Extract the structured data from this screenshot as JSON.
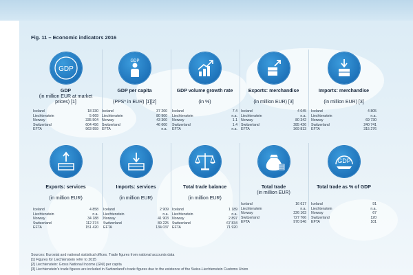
{
  "figure": {
    "title": "Fig. 11 – Economic indicators 2016"
  },
  "cards": [
    {
      "icon": "gdp-badge-icon",
      "title": "GDP",
      "subtitle": "(in million EUR at market prices) [1]",
      "rows": [
        {
          "country": "Iceland",
          "value": "18 330"
        },
        {
          "country": "Liechtenstein",
          "value": "5 669"
        },
        {
          "country": "Norway",
          "value": "335 504"
        },
        {
          "country": "Switzerland",
          "value": "604 456"
        },
        {
          "country": "EFTA",
          "value": "963 959"
        }
      ]
    },
    {
      "icon": "gdp-per-capita-person-icon",
      "title": "GDP per capita",
      "subtitle": "(PPS* in EUR) [1][2]",
      "rows": [
        {
          "country": "Iceland",
          "value": "37 200"
        },
        {
          "country": "Liechtenstein",
          "value": "80 900"
        },
        {
          "country": "Norway",
          "value": "43 300"
        },
        {
          "country": "Switzerland",
          "value": "46 600"
        },
        {
          "country": "EFTA",
          "value": "n.a."
        }
      ]
    },
    {
      "icon": "growth-chart-icon",
      "title": "GDP volume growth rate",
      "subtitle": "(in %)",
      "rows": [
        {
          "country": "Iceland",
          "value": "7.4"
        },
        {
          "country": "Liechtenstein",
          "value": "n.a."
        },
        {
          "country": "Norway",
          "value": "1.1"
        },
        {
          "country": "Switzerland",
          "value": "1.4"
        },
        {
          "country": "EFTA",
          "value": "n.a."
        }
      ]
    },
    {
      "icon": "export-merchandise-icon",
      "title": "Exports: merchandise",
      "subtitle": "(in million EUR) [3]",
      "rows": [
        {
          "country": "Iceland",
          "value": "4 045"
        },
        {
          "country": "Liechtenstein",
          "value": "n.a."
        },
        {
          "country": "Norway",
          "value": "80 342"
        },
        {
          "country": "Switzerland",
          "value": "285 426"
        },
        {
          "country": "EFTA",
          "value": "369 813"
        }
      ]
    },
    {
      "icon": "import-merchandise-icon",
      "title": "Imports: merchandise",
      "subtitle": "(in million EUR) [3]",
      "rows": [
        {
          "country": "Iceland",
          "value": "4 805"
        },
        {
          "country": "Liechtenstein",
          "value": "n.a."
        },
        {
          "country": "Norway",
          "value": "69 730"
        },
        {
          "country": "Switzerland",
          "value": "240 741"
        },
        {
          "country": "EFTA",
          "value": "315 276"
        }
      ]
    },
    {
      "icon": "export-services-icon",
      "title": "Exports: services",
      "subtitle": "(in million EUR)",
      "rows": [
        {
          "country": "Iceland",
          "value": "4 858"
        },
        {
          "country": "Liechtenstein",
          "value": "n.a."
        },
        {
          "country": "Norway",
          "value": "34 188"
        },
        {
          "country": "Switzerland",
          "value": "112 374"
        },
        {
          "country": "EFTA",
          "value": "151 420"
        }
      ]
    },
    {
      "icon": "import-services-icon",
      "title": "Imports: services",
      "subtitle": "(in million EUR)",
      "rows": [
        {
          "country": "Iceland",
          "value": "2 909"
        },
        {
          "country": "Liechtenstein",
          "value": "n.a."
        },
        {
          "country": "Norway",
          "value": "41 903"
        },
        {
          "country": "Switzerland",
          "value": "89 225"
        },
        {
          "country": "EFTA",
          "value": "134 037"
        }
      ]
    },
    {
      "icon": "balance-scale-icon",
      "title": "Total trade balance",
      "subtitle": "(in million EUR)",
      "rows": [
        {
          "country": "Iceland",
          "value": "1 189"
        },
        {
          "country": "Liechtenstein",
          "value": "n.a."
        },
        {
          "country": "Norway",
          "value": "2 897"
        },
        {
          "country": "Switzerland",
          "value": "67 834"
        },
        {
          "country": "EFTA",
          "value": "71 920"
        }
      ]
    },
    {
      "icon": "money-bag-icon",
      "title": "Total trade",
      "subtitle": "(in million EUR)",
      "rows": [
        {
          "country": "Iceland",
          "value": "16 617"
        },
        {
          "country": "Liechtenstein",
          "value": "n.a."
        },
        {
          "country": "Norway",
          "value": "226 163"
        },
        {
          "country": "Switzerland",
          "value": "727 766"
        },
        {
          "country": "EFTA",
          "value": "970 546"
        }
      ]
    },
    {
      "icon": "trade-gdp-icon",
      "title": "Total trade as % of GDP",
      "subtitle": "",
      "rows": [
        {
          "country": "Iceland",
          "value": "91"
        },
        {
          "country": "Liechtenstein",
          "value": "n.a."
        },
        {
          "country": "Norway",
          "value": "67"
        },
        {
          "country": "Switzerland",
          "value": "120"
        },
        {
          "country": "EFTA",
          "value": "101"
        }
      ]
    }
  ],
  "icon_labels": {
    "gdp": "GDP",
    "gdp_small": "GDP"
  },
  "footnotes": [
    "Sources: Eurostat and national statistical offices. Trade figures from national accounts data",
    "[1] Figures for Liechtenstein refer to 2015",
    "[2] Liechtenstein: Gross National Income (GNI) per capita",
    "[3] Liechtenstein's trade figures are included in Switzerland's trade figures due to the existence of the Swiss-Liechtenstein Customs Union"
  ],
  "colors": {
    "icon_blue": "#1d71b8",
    "text_dark": "#17263a",
    "divider": "#c6d7e4"
  }
}
